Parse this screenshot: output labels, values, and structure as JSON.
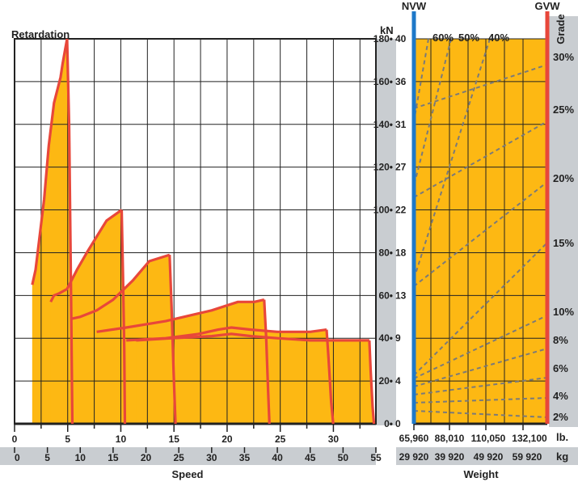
{
  "colors": {
    "fill": "#FDB813",
    "curve": "#E8473A",
    "grid": "#222222",
    "band": "#C9CDD1",
    "nvw_line": "#1E78C8",
    "gvw_line": "#E8473A",
    "dashed": "#7A7A7A"
  },
  "labels": {
    "retardation": "Retardation",
    "kn_unit": "kN",
    "speed": "Speed",
    "weight": "Weight",
    "nvw": "NVW",
    "gvw": "GVW",
    "grade": "Grade",
    "lb_unit": "lb.",
    "kg_unit": "kg"
  },
  "chart_data": {
    "type": "area",
    "speed_mph_ticks": [
      "0",
      "5",
      "10",
      "15",
      "20",
      "25",
      "30"
    ],
    "speed_kmh_ticks": [
      "0",
      "5",
      "10",
      "15",
      "20",
      "25",
      "30",
      "35",
      "40",
      "45",
      "50",
      "55"
    ],
    "ylim_left": [
      0,
      180
    ],
    "y_left_ticks": [
      "0",
      "20",
      "40",
      "60",
      "80",
      "100",
      "120",
      "140",
      "160",
      "180"
    ],
    "y_kn_ticks": [
      "0",
      "4",
      "9",
      "13",
      "18",
      "22",
      "27",
      "31",
      "36",
      "40"
    ],
    "xlim_kmh": [
      0,
      55
    ],
    "series": [
      {
        "x": [
          2.7,
          3.2,
          4.5,
          5.2,
          6.0,
          7.0,
          7.3,
          7.7,
          8.0
        ],
        "y": [
          65,
          72,
          105,
          130,
          150,
          162,
          168,
          175,
          180
        ]
      },
      {
        "x": [
          5.5,
          6.0,
          6.8,
          8.0,
          9.5,
          11.0,
          14.0,
          16.3
        ],
        "y": [
          57,
          60,
          61,
          63,
          72,
          80,
          95,
          100
        ]
      },
      {
        "x": [
          8.5,
          10.0,
          12.5,
          15.0,
          18.0,
          20.5,
          23.6
        ],
        "y": [
          49,
          50,
          53,
          58,
          67,
          76,
          79
        ]
      },
      {
        "x": [
          12.5,
          17.0,
          23.0,
          30.0,
          34.0,
          36.5,
          38.0
        ],
        "y": [
          43,
          45,
          48,
          53,
          57,
          57,
          58
        ]
      },
      {
        "x": [
          17.0,
          23.0,
          28.0,
          31.0,
          33.0,
          36.0,
          40.0,
          45.0,
          47.5
        ],
        "y": [
          39,
          40,
          42,
          44,
          45,
          44,
          43,
          43,
          44
        ]
      },
      {
        "x": [
          18.5,
          24.0,
          30.0,
          33.0,
          36.0,
          40.0,
          45.0,
          50.0,
          54.0
        ],
        "y": [
          39,
          40,
          41,
          42,
          41,
          40,
          39,
          39,
          39
        ]
      }
    ],
    "speed_drops": [
      {
        "x": [
          8.0,
          8.3,
          8.6,
          8.8
        ],
        "y": [
          180,
          140,
          60,
          0
        ]
      },
      {
        "x": [
          16.3,
          16.5,
          16.7,
          16.8
        ],
        "y": [
          100,
          70,
          35,
          0
        ]
      },
      {
        "x": [
          23.6,
          23.9,
          24.2,
          24.5
        ],
        "y": [
          79,
          55,
          25,
          0
        ]
      },
      {
        "x": [
          38.0,
          38.3,
          38.6,
          38.8
        ],
        "y": [
          58,
          40,
          15,
          0
        ]
      },
      {
        "x": [
          47.5,
          47.8,
          48.2,
          48.5
        ],
        "y": [
          44,
          30,
          10,
          0
        ]
      },
      {
        "x": [
          54.0,
          54.2,
          54.5,
          54.7
        ],
        "y": [
          39,
          25,
          8,
          0
        ]
      }
    ],
    "weight_lb_ticks": [
      "65,960",
      "88,010",
      "110,050",
      "132,100"
    ],
    "weight_kg_ticks": [
      "29 920",
      "39 920",
      "49 920",
      "59 920"
    ],
    "grade_ticks": [
      "2%",
      "4%",
      "6%",
      "8%",
      "10%",
      "15%",
      "20%",
      "25%",
      "30%"
    ],
    "grade_top_labels": [
      "60%",
      "50%",
      "40%"
    ]
  }
}
